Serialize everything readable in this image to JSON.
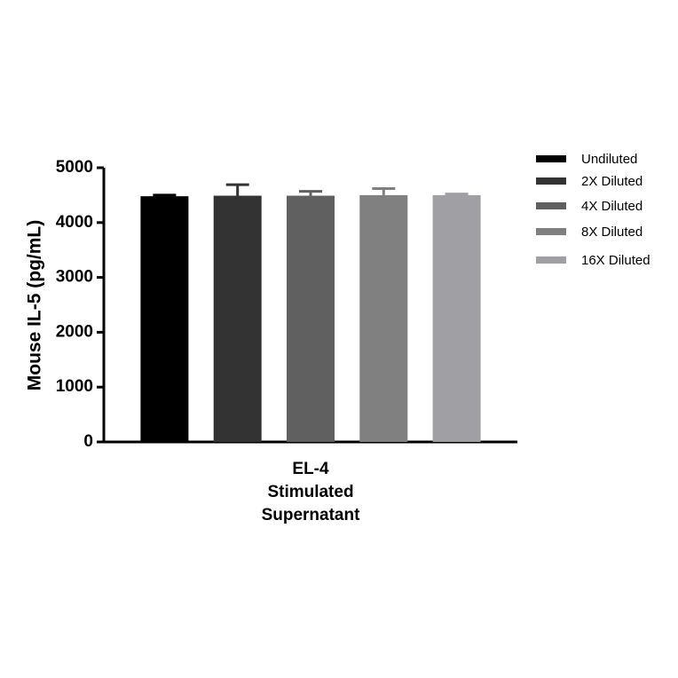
{
  "chart_data": {
    "type": "bar",
    "y_label": "Mouse IL-5 (pg/mL)",
    "categories": [
      "EL-4\nStimulated\nSupernatant"
    ],
    "series": [
      {
        "name": "Undiluted",
        "color": "#000000",
        "values": [
          4480
        ],
        "error": [
          20
        ]
      },
      {
        "name": "2X Diluted",
        "color": "#333333",
        "values": [
          4490
        ],
        "error": [
          200
        ]
      },
      {
        "name": "4X Diluted",
        "color": "#606060",
        "values": [
          4490
        ],
        "error": [
          80
        ]
      },
      {
        "name": "8X Diluted",
        "color": "#808080",
        "values": [
          4500
        ],
        "error": [
          120
        ]
      },
      {
        "name": "16X Diluted",
        "color": "#a0a0a4",
        "values": [
          4500
        ],
        "error": [
          20
        ]
      }
    ],
    "ylim": [
      0,
      5000
    ],
    "yticks": [
      0,
      1000,
      2000,
      3000,
      4000,
      5000
    ]
  }
}
